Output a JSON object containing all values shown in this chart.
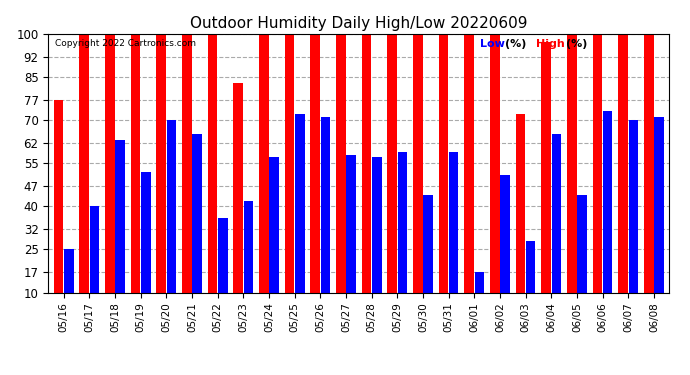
{
  "title": "Outdoor Humidity Daily High/Low 20220609",
  "copyright": "Copyright 2022 Cartronics.com",
  "ylim": [
    10,
    100
  ],
  "yticks": [
    10,
    17,
    25,
    32,
    40,
    47,
    55,
    62,
    70,
    77,
    85,
    92,
    100
  ],
  "legend_low_label": "Low",
  "legend_high_label": "High",
  "legend_unit": "(%)",
  "low_color": "#0000ff",
  "high_color": "#ff0000",
  "background_color": "#ffffff",
  "grid_color": "#aaaaaa",
  "dates": [
    "05/16",
    "05/17",
    "05/18",
    "05/19",
    "05/20",
    "05/21",
    "05/22",
    "05/23",
    "05/24",
    "05/25",
    "05/26",
    "05/27",
    "05/28",
    "05/29",
    "05/30",
    "05/31",
    "06/01",
    "06/02",
    "06/03",
    "06/04",
    "06/05",
    "06/06",
    "06/07",
    "06/08"
  ],
  "high_values": [
    77,
    100,
    100,
    100,
    100,
    100,
    100,
    83,
    100,
    100,
    100,
    100,
    100,
    100,
    100,
    100,
    100,
    100,
    72,
    97,
    100,
    100,
    100,
    100
  ],
  "low_values": [
    25,
    40,
    63,
    52,
    70,
    65,
    36,
    42,
    57,
    72,
    71,
    58,
    57,
    59,
    44,
    59,
    17,
    51,
    28,
    65,
    44,
    73,
    70,
    71
  ]
}
